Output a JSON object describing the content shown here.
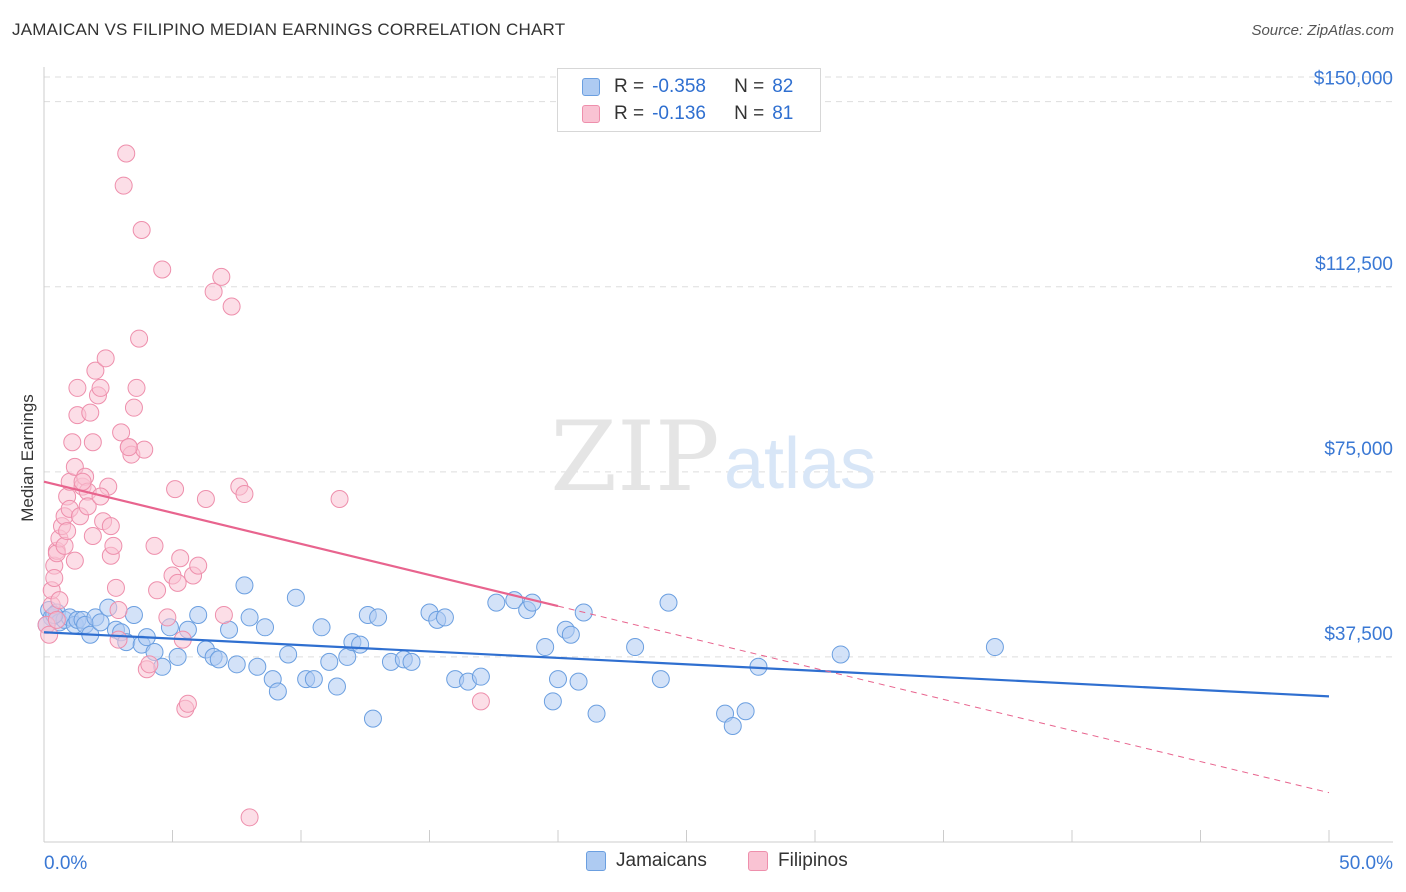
{
  "title": "JAMAICAN VS FILIPINO MEDIAN EARNINGS CORRELATION CHART",
  "source": "Source: ZipAtlas.com",
  "watermark": {
    "zip": "ZIP",
    "atlas": "atlas"
  },
  "legend": {
    "r_label": "R =",
    "n_label": "N =",
    "rows": [
      {
        "series": "Jamaicans",
        "r": "-0.358",
        "n": "82",
        "fill": "#aecbf2",
        "stroke": "#6b9fe0"
      },
      {
        "series": "Filipinos",
        "r": "-0.136",
        "n": "81",
        "fill": "#f9c3d3",
        "stroke": "#ee8fac"
      }
    ]
  },
  "bottom_legend": [
    {
      "label": "Jamaicans",
      "fill": "#aecbf2",
      "stroke": "#6b9fe0"
    },
    {
      "label": "Filipinos",
      "fill": "#f9c3d3",
      "stroke": "#ee8fac"
    }
  ],
  "chart_data": {
    "type": "scatter",
    "title": "JAMAICAN VS FILIPINO MEDIAN EARNINGS CORRELATION CHART",
    "xlabel": "",
    "ylabel": "Median Earnings",
    "xlim": [
      0,
      50
    ],
    "ylim": [
      0,
      155000
    ],
    "x_tick_labels": [
      "0.0%",
      "50.0%"
    ],
    "y_ticks": [
      37500,
      75000,
      112500,
      150000
    ],
    "y_tick_labels": [
      "$37,500",
      "$75,000",
      "$112,500",
      "$150,000"
    ],
    "grid": true,
    "colors": {
      "Jamaicans": "#2f6fd0",
      "Filipinos": "#e8648e",
      "tick_text": "#3a78d4"
    },
    "series": [
      {
        "name": "Jamaicans",
        "trend": {
          "x0": 0,
          "y0": 42500,
          "x1": 50,
          "y1": 29500,
          "solid_until": 50
        },
        "points": [
          [
            0.2,
            47000
          ],
          [
            0.3,
            45500
          ],
          [
            0.5,
            46500
          ],
          [
            0.6,
            44500
          ],
          [
            0.8,
            45000
          ],
          [
            1.0,
            45500
          ],
          [
            1.2,
            44000
          ],
          [
            1.3,
            45000
          ],
          [
            1.5,
            45000
          ],
          [
            1.6,
            44000
          ],
          [
            1.8,
            42000
          ],
          [
            2.0,
            45500
          ],
          [
            2.2,
            44500
          ],
          [
            2.5,
            47500
          ],
          [
            2.8,
            43000
          ],
          [
            3.0,
            42500
          ],
          [
            3.2,
            40500
          ],
          [
            3.5,
            46000
          ],
          [
            3.8,
            40000
          ],
          [
            4.0,
            41500
          ],
          [
            4.3,
            38500
          ],
          [
            4.6,
            35500
          ],
          [
            4.9,
            43500
          ],
          [
            5.2,
            37500
          ],
          [
            5.6,
            43000
          ],
          [
            6.0,
            46000
          ],
          [
            6.3,
            39000
          ],
          [
            6.6,
            37500
          ],
          [
            6.8,
            37000
          ],
          [
            7.2,
            43000
          ],
          [
            7.5,
            36000
          ],
          [
            7.8,
            52000
          ],
          [
            8.0,
            45500
          ],
          [
            8.3,
            35500
          ],
          [
            8.6,
            43500
          ],
          [
            8.9,
            33000
          ],
          [
            9.1,
            30500
          ],
          [
            9.5,
            38000
          ],
          [
            9.8,
            49500
          ],
          [
            10.2,
            33000
          ],
          [
            10.5,
            33000
          ],
          [
            10.8,
            43500
          ],
          [
            11.1,
            36500
          ],
          [
            11.4,
            31500
          ],
          [
            11.8,
            37500
          ],
          [
            12.0,
            40500
          ],
          [
            12.3,
            40000
          ],
          [
            12.6,
            46000
          ],
          [
            12.8,
            25000
          ],
          [
            13.0,
            45500
          ],
          [
            13.5,
            36500
          ],
          [
            14.0,
            37000
          ],
          [
            14.3,
            36500
          ],
          [
            15.0,
            46500
          ],
          [
            15.3,
            45000
          ],
          [
            15.6,
            45500
          ],
          [
            16.0,
            33000
          ],
          [
            16.5,
            32500
          ],
          [
            17.0,
            33500
          ],
          [
            17.6,
            48500
          ],
          [
            18.3,
            49000
          ],
          [
            18.8,
            47000
          ],
          [
            19.0,
            48500
          ],
          [
            19.5,
            39500
          ],
          [
            19.8,
            28500
          ],
          [
            20.0,
            33000
          ],
          [
            20.3,
            43000
          ],
          [
            20.5,
            42000
          ],
          [
            20.8,
            32500
          ],
          [
            21.0,
            46500
          ],
          [
            21.5,
            26000
          ],
          [
            23.0,
            39500
          ],
          [
            24.0,
            33000
          ],
          [
            24.3,
            48500
          ],
          [
            26.5,
            26000
          ],
          [
            26.8,
            23500
          ],
          [
            27.3,
            26500
          ],
          [
            27.8,
            35500
          ],
          [
            31.0,
            38000
          ],
          [
            37.0,
            39500
          ],
          [
            0.1,
            44000
          ],
          [
            0.4,
            46000
          ]
        ]
      },
      {
        "name": "Filipinos",
        "trend": {
          "x0": 0,
          "y0": 73000,
          "x1": 50,
          "y1": 10000,
          "solid_until": 20
        },
        "points": [
          [
            0.1,
            44000
          ],
          [
            0.2,
            42000
          ],
          [
            0.3,
            48000
          ],
          [
            0.3,
            51000
          ],
          [
            0.4,
            56000
          ],
          [
            0.4,
            53500
          ],
          [
            0.5,
            59000
          ],
          [
            0.5,
            58500
          ],
          [
            0.6,
            61500
          ],
          [
            0.7,
            64000
          ],
          [
            0.8,
            66000
          ],
          [
            0.8,
            60000
          ],
          [
            0.9,
            70000
          ],
          [
            1.0,
            73000
          ],
          [
            1.0,
            67500
          ],
          [
            1.1,
            81000
          ],
          [
            1.2,
            76000
          ],
          [
            1.3,
            92000
          ],
          [
            1.3,
            86500
          ],
          [
            1.4,
            66000
          ],
          [
            1.5,
            72000
          ],
          [
            1.6,
            74000
          ],
          [
            1.7,
            71000
          ],
          [
            1.7,
            68000
          ],
          [
            1.8,
            87000
          ],
          [
            1.9,
            81000
          ],
          [
            2.0,
            95500
          ],
          [
            2.1,
            90500
          ],
          [
            2.2,
            92000
          ],
          [
            2.3,
            65000
          ],
          [
            2.4,
            98000
          ],
          [
            2.5,
            72000
          ],
          [
            2.6,
            58000
          ],
          [
            2.7,
            60000
          ],
          [
            2.8,
            51500
          ],
          [
            2.9,
            47000
          ],
          [
            3.0,
            83000
          ],
          [
            3.1,
            133000
          ],
          [
            3.2,
            139500
          ],
          [
            3.3,
            80000
          ],
          [
            3.4,
            78500
          ],
          [
            3.5,
            88000
          ],
          [
            3.6,
            92000
          ],
          [
            3.7,
            102000
          ],
          [
            3.8,
            124000
          ],
          [
            3.9,
            79500
          ],
          [
            4.0,
            35000
          ],
          [
            4.1,
            36000
          ],
          [
            4.3,
            60000
          ],
          [
            4.4,
            51000
          ],
          [
            4.6,
            116000
          ],
          [
            4.8,
            45500
          ],
          [
            5.0,
            54000
          ],
          [
            5.1,
            71500
          ],
          [
            5.2,
            52500
          ],
          [
            5.3,
            57500
          ],
          [
            5.4,
            41000
          ],
          [
            5.5,
            27000
          ],
          [
            5.6,
            28000
          ],
          [
            5.8,
            54000
          ],
          [
            6.0,
            56000
          ],
          [
            6.3,
            69500
          ],
          [
            6.6,
            111500
          ],
          [
            6.9,
            114500
          ],
          [
            7.0,
            46000
          ],
          [
            7.3,
            108500
          ],
          [
            7.6,
            72000
          ],
          [
            7.8,
            70500
          ],
          [
            8.0,
            5000
          ],
          [
            11.5,
            69500
          ],
          [
            17.0,
            28500
          ],
          [
            0.6,
            49000
          ],
          [
            1.9,
            62000
          ],
          [
            2.2,
            70000
          ],
          [
            2.6,
            64000
          ],
          [
            3.3,
            80000
          ],
          [
            0.9,
            63000
          ],
          [
            1.5,
            73000
          ],
          [
            0.5,
            45000
          ],
          [
            1.2,
            57000
          ],
          [
            2.9,
            41000
          ]
        ]
      }
    ]
  }
}
